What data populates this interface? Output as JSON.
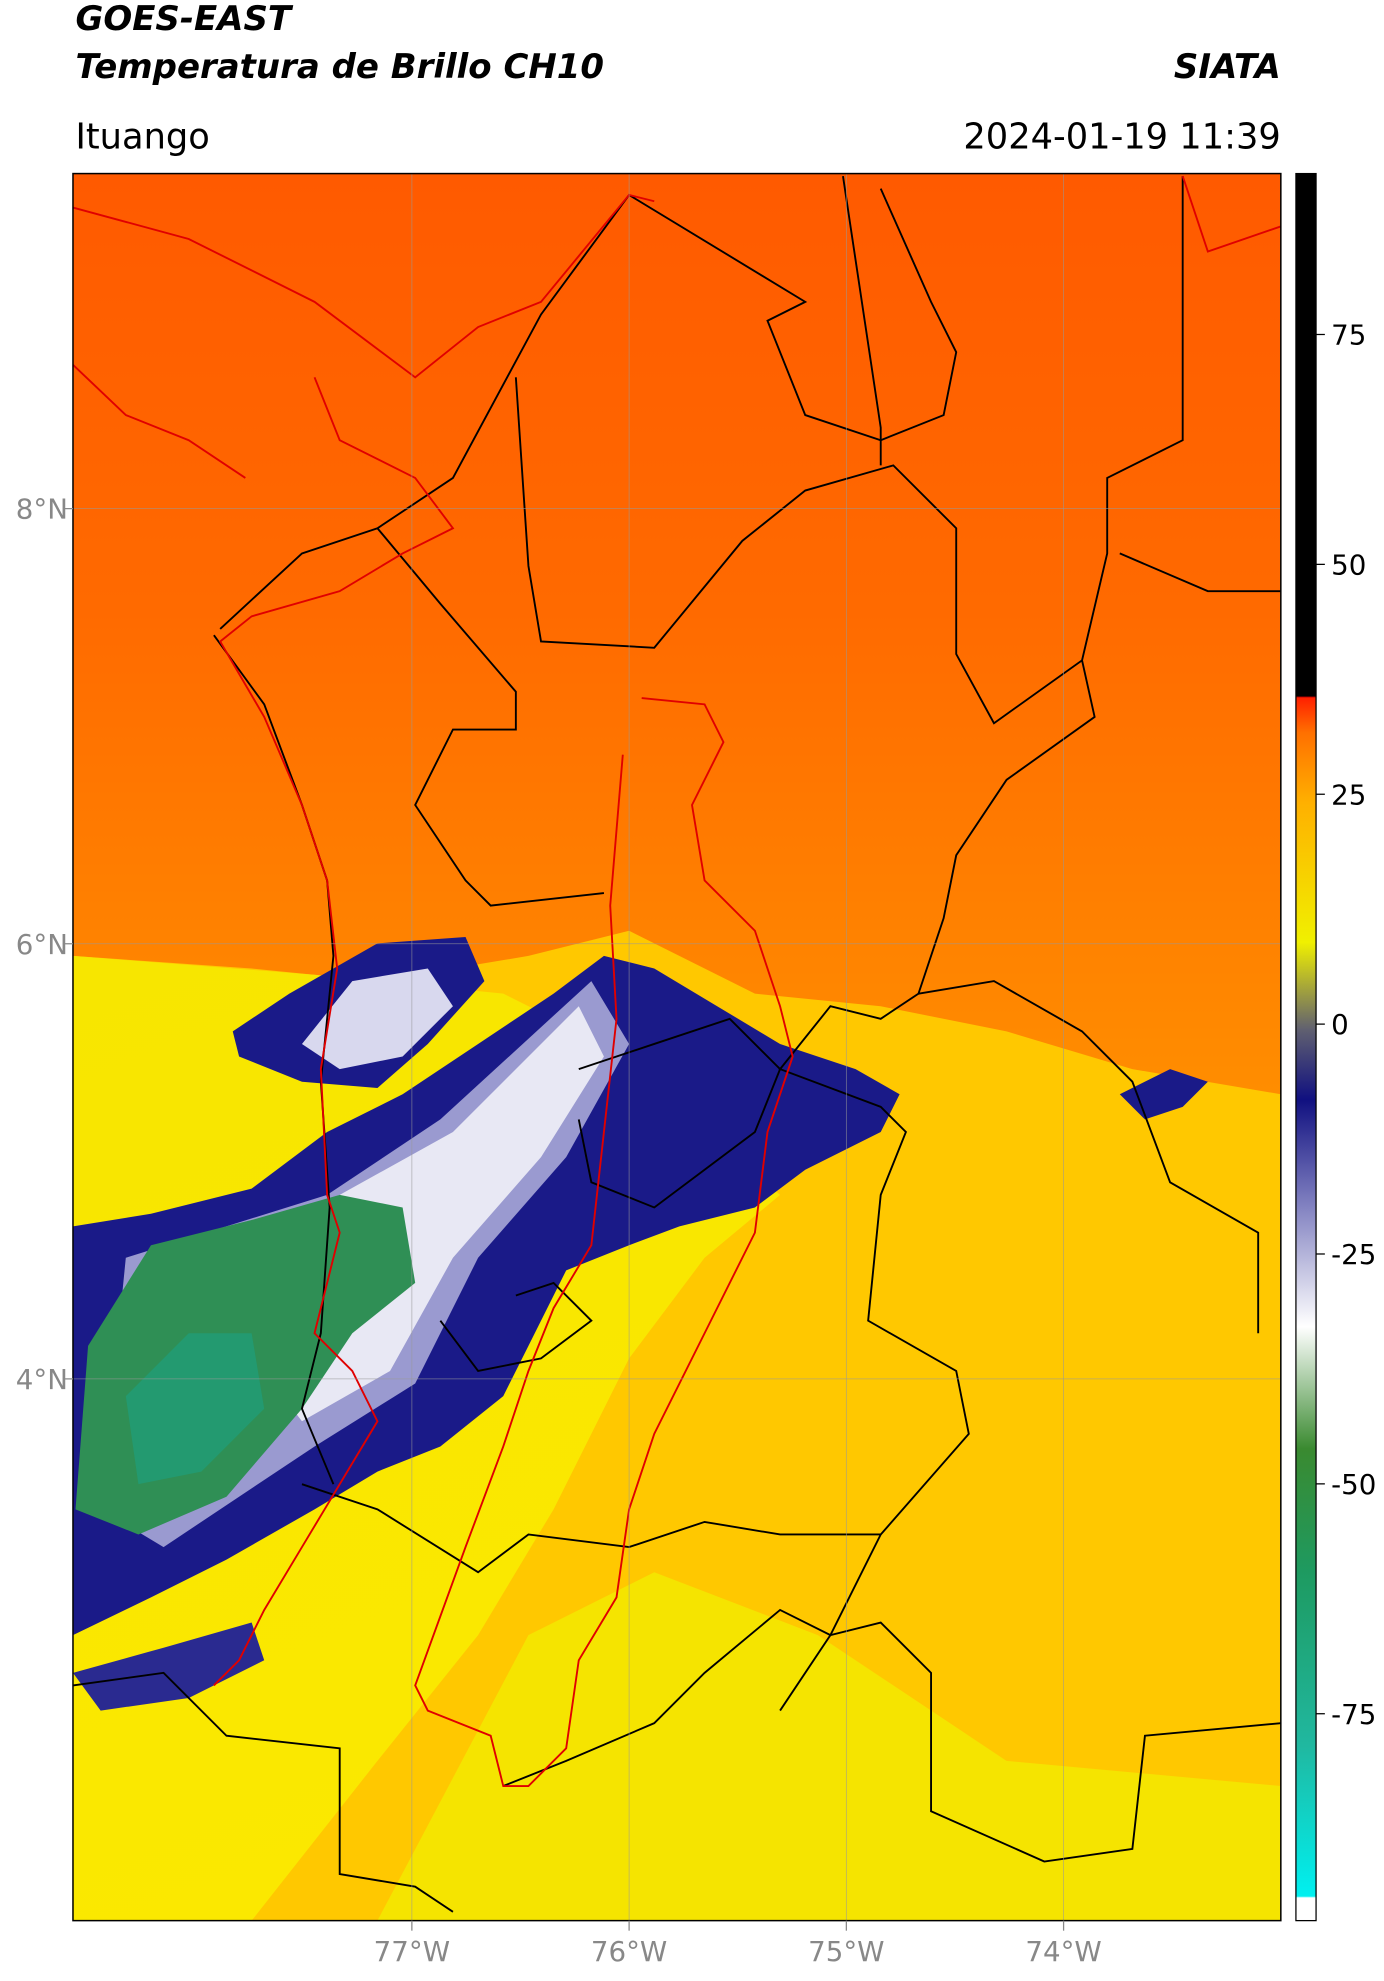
{
  "header": {
    "satellite": "GOES-EAST",
    "product": "Temperatura de Brillo CH10",
    "agency": "SIATA",
    "region": "Ituango",
    "datetime": "2024-01-19 11:39"
  },
  "map": {
    "lonlim": [
      -78.56,
      -73.0
    ],
    "latlim": [
      1.51,
      9.54
    ],
    "lon_ticks": [
      {
        "value": -77,
        "label": "77°W"
      },
      {
        "value": -76,
        "label": "76°W"
      },
      {
        "value": -75,
        "label": "75°W"
      },
      {
        "value": -74,
        "label": "74°W"
      }
    ],
    "lat_ticks": [
      {
        "value": 8,
        "label": "8°N"
      },
      {
        "value": 6,
        "label": "6°N"
      },
      {
        "value": 4,
        "label": "4°N"
      }
    ],
    "grid": true
  },
  "colorbar": {
    "lim": [
      -97.5,
      92.5
    ],
    "ticks": [
      75,
      50,
      25,
      0,
      -25,
      -50,
      -75
    ]
  }
}
